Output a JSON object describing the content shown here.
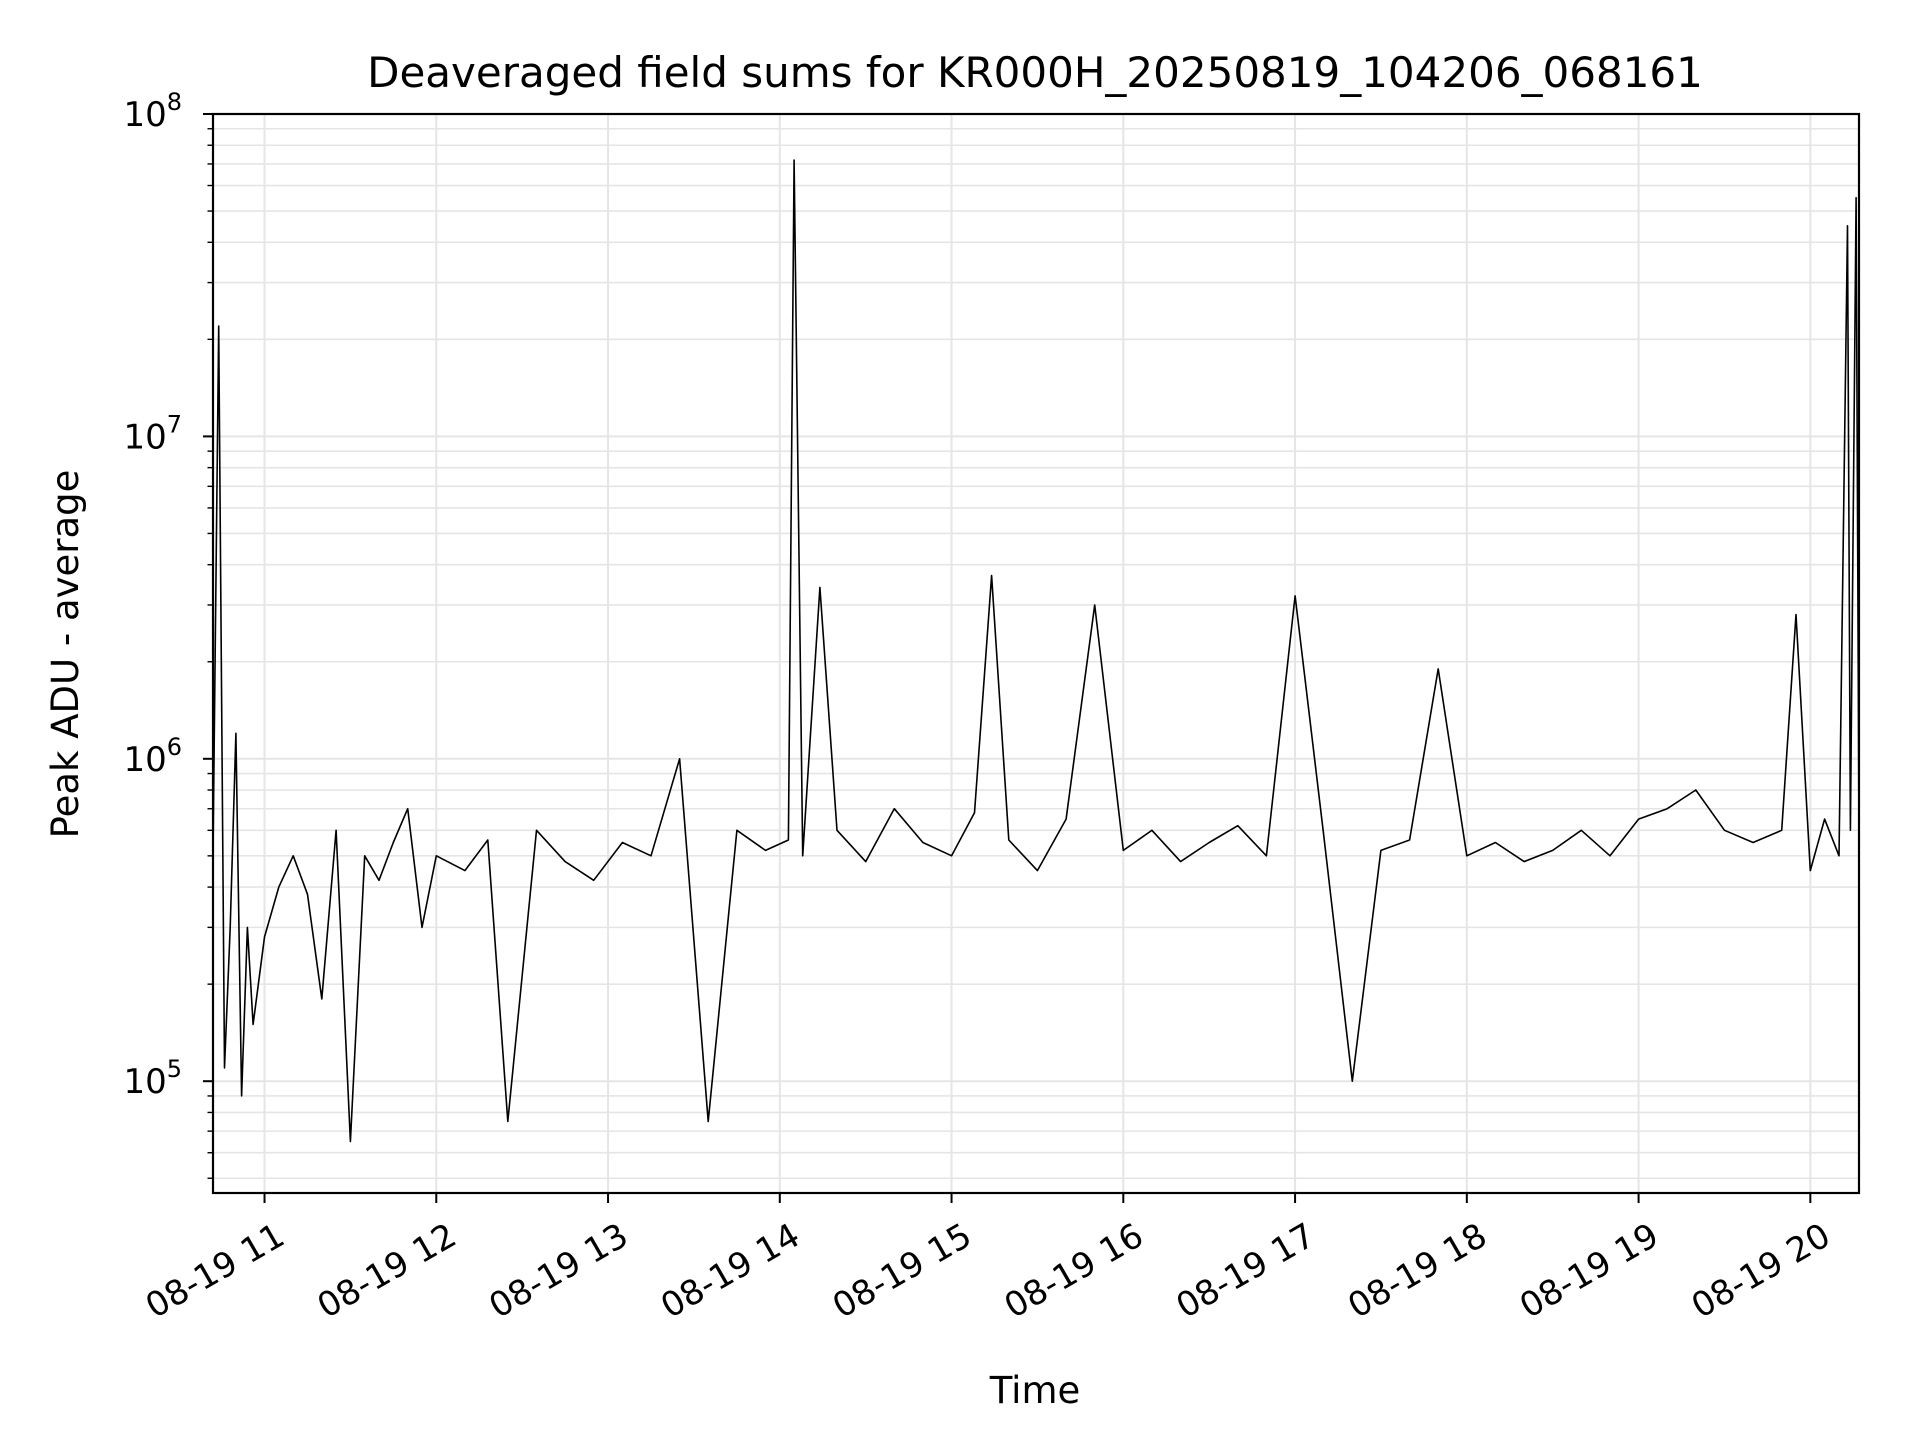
{
  "chart_data": {
    "type": "line",
    "title": "Deaveraged field sums for KR000H_20250819_104206_068161",
    "xlabel": "Time",
    "ylabel": "Peak ADU - average",
    "y_scale": "log",
    "grid": true,
    "legend": "none",
    "line_color": "#000000",
    "grid_color": "#e5e5e5",
    "x_ticks": [
      {
        "label": "08-19 11",
        "t": "2025-08-19T11:00"
      },
      {
        "label": "08-19 12",
        "t": "2025-08-19T12:00"
      },
      {
        "label": "08-19 13",
        "t": "2025-08-19T13:00"
      },
      {
        "label": "08-19 14",
        "t": "2025-08-19T14:00"
      },
      {
        "label": "08-19 15",
        "t": "2025-08-19T15:00"
      },
      {
        "label": "08-19 16",
        "t": "2025-08-19T16:00"
      },
      {
        "label": "08-19 17",
        "t": "2025-08-19T17:00"
      },
      {
        "label": "08-19 18",
        "t": "2025-08-19T18:00"
      },
      {
        "label": "08-19 19",
        "t": "2025-08-19T19:00"
      },
      {
        "label": "08-19 20",
        "t": "2025-08-19T20:00"
      }
    ],
    "y_ticks": [
      {
        "base": "10",
        "exp": "5",
        "value": 100000
      },
      {
        "base": "10",
        "exp": "6",
        "value": 1000000
      },
      {
        "base": "10",
        "exp": "7",
        "value": 10000000
      },
      {
        "base": "10",
        "exp": "8",
        "value": 100000000
      }
    ],
    "xlim": [
      "2025-08-19T10:42",
      "2025-08-19T20:17"
    ],
    "ylim": [
      45000,
      100000000
    ],
    "series": [
      {
        "x": [
          "2025-08-19T10:42",
          "2025-08-19T10:44",
          "2025-08-19T10:46",
          "2025-08-19T10:48",
          "2025-08-19T10:50",
          "2025-08-19T10:52",
          "2025-08-19T10:54",
          "2025-08-19T10:56",
          "2025-08-19T11:00",
          "2025-08-19T11:05",
          "2025-08-19T11:10",
          "2025-08-19T11:15",
          "2025-08-19T11:20",
          "2025-08-19T11:25",
          "2025-08-19T11:30",
          "2025-08-19T11:35",
          "2025-08-19T11:40",
          "2025-08-19T11:45",
          "2025-08-19T11:50",
          "2025-08-19T11:55",
          "2025-08-19T12:00",
          "2025-08-19T12:10",
          "2025-08-19T12:18",
          "2025-08-19T12:25",
          "2025-08-19T12:35",
          "2025-08-19T12:45",
          "2025-08-19T12:55",
          "2025-08-19T13:05",
          "2025-08-19T13:15",
          "2025-08-19T13:25",
          "2025-08-19T13:35",
          "2025-08-19T13:45",
          "2025-08-19T13:55",
          "2025-08-19T14:03",
          "2025-08-19T14:05",
          "2025-08-19T14:08",
          "2025-08-19T14:14",
          "2025-08-19T14:20",
          "2025-08-19T14:30",
          "2025-08-19T14:40",
          "2025-08-19T14:50",
          "2025-08-19T15:00",
          "2025-08-19T15:08",
          "2025-08-19T15:14",
          "2025-08-19T15:20",
          "2025-08-19T15:30",
          "2025-08-19T15:40",
          "2025-08-19T15:50",
          "2025-08-19T16:00",
          "2025-08-19T16:10",
          "2025-08-19T16:20",
          "2025-08-19T16:30",
          "2025-08-19T16:40",
          "2025-08-19T16:50",
          "2025-08-19T17:00",
          "2025-08-19T17:10",
          "2025-08-19T17:20",
          "2025-08-19T17:30",
          "2025-08-19T17:40",
          "2025-08-19T17:50",
          "2025-08-19T18:00",
          "2025-08-19T18:10",
          "2025-08-19T18:20",
          "2025-08-19T18:30",
          "2025-08-19T18:40",
          "2025-08-19T18:50",
          "2025-08-19T19:00",
          "2025-08-19T19:10",
          "2025-08-19T19:20",
          "2025-08-19T19:30",
          "2025-08-19T19:40",
          "2025-08-19T19:50",
          "2025-08-19T19:55",
          "2025-08-19T20:00",
          "2025-08-19T20:05",
          "2025-08-19T20:10",
          "2025-08-19T20:13",
          "2025-08-19T20:14",
          "2025-08-19T20:16",
          "2025-08-19T20:17"
        ],
        "y": [
          500000,
          22000000,
          110000,
          300000,
          1200000,
          90000,
          300000,
          150000,
          280000,
          400000,
          500000,
          380000,
          180000,
          600000,
          65000,
          500000,
          420000,
          550000,
          700000,
          300000,
          500000,
          450000,
          560000,
          75000,
          600000,
          480000,
          420000,
          550000,
          500000,
          1000000,
          75000,
          600000,
          520000,
          560000,
          72000000,
          500000,
          3400000,
          600000,
          480000,
          700000,
          550000,
          500000,
          680000,
          3700000,
          560000,
          450000,
          650000,
          3000000,
          520000,
          600000,
          480000,
          550000,
          620000,
          500000,
          3200000,
          580000,
          100000,
          520000,
          560000,
          1900000,
          500000,
          550000,
          480000,
          520000,
          600000,
          500000,
          650000,
          700000,
          800000,
          600000,
          550000,
          600000,
          2800000,
          450000,
          650000,
          500000,
          45000000,
          600000,
          55000000,
          560000
        ]
      }
    ]
  }
}
